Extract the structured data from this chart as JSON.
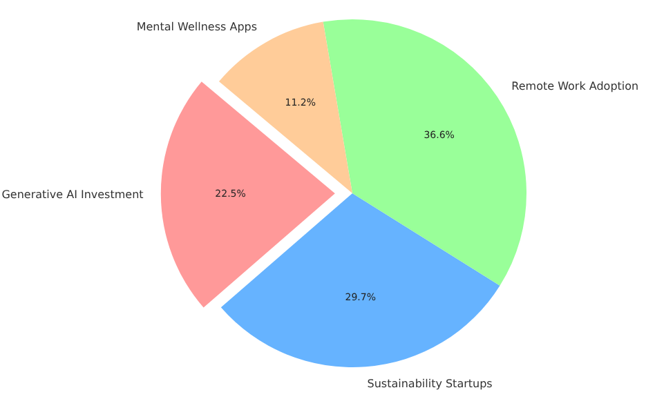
{
  "chart_data": {
    "type": "pie",
    "categories": [
      "Generative AI Investment",
      "Sustainability Startups",
      "Remote Work Adoption",
      "Mental Wellness Apps"
    ],
    "values": [
      22.5,
      29.7,
      36.6,
      11.2
    ],
    "colors": [
      "#ff9999",
      "#66b3ff",
      "#99ff99",
      "#ffcc99"
    ],
    "value_labels": [
      "22.5%",
      "29.7%",
      "36.6%",
      "11.2%"
    ]
  }
}
